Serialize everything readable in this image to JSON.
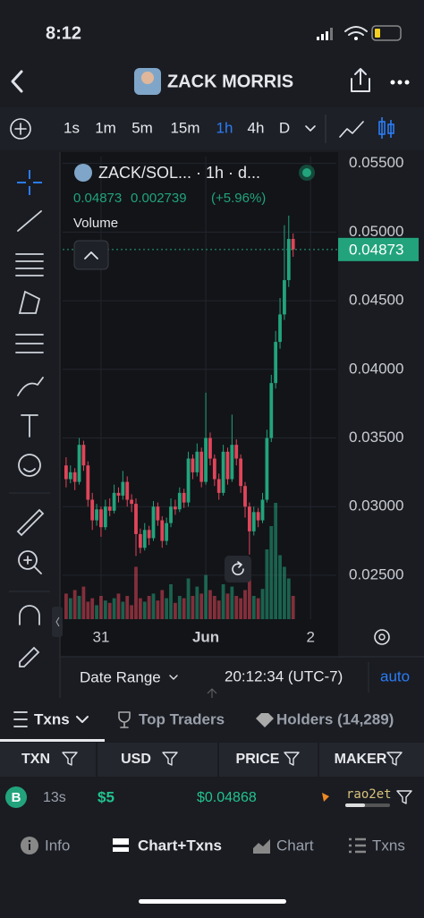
{
  "status": {
    "time": "8:12"
  },
  "header": {
    "title": "ZACK MORRIS"
  },
  "toolbar": {
    "intervals": [
      "1s",
      "1m",
      "5m",
      "15m",
      "1h",
      "4h",
      "D"
    ]
  },
  "chart": {
    "type": "candlestick",
    "symbol": "ZACK/SOL... · 1h · d...",
    "last_text": "0.04873",
    "change_text": "0.002739",
    "change_pct": "(+5.96%)",
    "volume_label": "Volume",
    "up_color": "#22a37c",
    "down_color": "#e0455a",
    "open": [
      0.033,
      0.032,
      0.0325,
      0.0318,
      0.0345,
      0.033,
      0.0305,
      0.029,
      0.0298,
      0.0285,
      0.03,
      0.0297,
      0.031,
      0.0308,
      0.0318,
      0.0305,
      0.0302,
      0.028,
      0.027,
      0.0283,
      0.0277,
      0.03,
      0.029,
      0.0275,
      0.0288,
      0.03,
      0.0298,
      0.031,
      0.0303,
      0.0335,
      0.0325,
      0.034,
      0.0318,
      0.035,
      0.0335,
      0.032,
      0.031,
      0.034,
      0.032,
      0.0345,
      0.0335,
      0.0315,
      0.03,
      0.0282,
      0.0296,
      0.029,
      0.0305,
      0.035,
      0.039,
      0.042,
      0.044,
      0.0465,
      0.0495
    ],
    "high": [
      0.0336,
      0.033,
      0.0328,
      0.035,
      0.0348,
      0.0333,
      0.031,
      0.0302,
      0.03,
      0.0305,
      0.0306,
      0.0316,
      0.0314,
      0.0326,
      0.0322,
      0.0309,
      0.0306,
      0.0284,
      0.0288,
      0.0286,
      0.0304,
      0.0303,
      0.0293,
      0.0292,
      0.0306,
      0.0305,
      0.0314,
      0.0313,
      0.034,
      0.0338,
      0.0346,
      0.0343,
      0.0383,
      0.0354,
      0.0338,
      0.0324,
      0.0345,
      0.0343,
      0.0367,
      0.0349,
      0.0338,
      0.0318,
      0.0303,
      0.03,
      0.0299,
      0.031,
      0.0356,
      0.0396,
      0.0428,
      0.0452,
      0.0505,
      0.0512,
      0.0499
    ],
    "low": [
      0.0314,
      0.0317,
      0.0312,
      0.0316,
      0.0326,
      0.03,
      0.0283,
      0.0286,
      0.0278,
      0.0283,
      0.0293,
      0.0295,
      0.0303,
      0.0305,
      0.03,
      0.0296,
      0.0264,
      0.0266,
      0.0268,
      0.0272,
      0.0275,
      0.0286,
      0.027,
      0.0272,
      0.0285,
      0.0294,
      0.0296,
      0.0299,
      0.03,
      0.032,
      0.0322,
      0.0314,
      0.0316,
      0.033,
      0.0315,
      0.0305,
      0.0308,
      0.0316,
      0.0318,
      0.033,
      0.031,
      0.0292,
      0.0265,
      0.0279,
      0.0285,
      0.0288,
      0.0303,
      0.0347,
      0.0386,
      0.0415,
      0.0436,
      0.046,
      0.0482
    ],
    "close": [
      0.032,
      0.0325,
      0.0318,
      0.0345,
      0.033,
      0.0305,
      0.029,
      0.0298,
      0.0285,
      0.03,
      0.0297,
      0.031,
      0.0308,
      0.0318,
      0.0305,
      0.0302,
      0.028,
      0.027,
      0.0283,
      0.0277,
      0.03,
      0.029,
      0.0275,
      0.0288,
      0.03,
      0.0298,
      0.031,
      0.0303,
      0.0335,
      0.0325,
      0.034,
      0.0318,
      0.035,
      0.0335,
      0.032,
      0.031,
      0.034,
      0.032,
      0.0345,
      0.0335,
      0.0315,
      0.03,
      0.0282,
      0.0296,
      0.029,
      0.0305,
      0.035,
      0.039,
      0.042,
      0.044,
      0.0465,
      0.0495,
      0.04873
    ],
    "volume": [
      22,
      18,
      25,
      20,
      28,
      15,
      18,
      12,
      20,
      16,
      14,
      18,
      22,
      15,
      20,
      12,
      45,
      18,
      15,
      20,
      22,
      16,
      25,
      18,
      30,
      14,
      20,
      18,
      35,
      20,
      28,
      22,
      38,
      25,
      20,
      16,
      30,
      22,
      28,
      20,
      18,
      25,
      34,
      20,
      18,
      26,
      60,
      80,
      100,
      55,
      45,
      35,
      20
    ],
    "xlim": [
      -0.8,
      61.9
    ],
    "xticks": [
      {
        "value": 8,
        "label": "31"
      },
      {
        "value": 32,
        "label": "Jun"
      },
      {
        "value": 56,
        "label": "2"
      }
    ],
    "ylim": [
      0.0218,
      0.0555
    ],
    "yticks": [
      {
        "value": 0.025,
        "label": "0.02500"
      },
      {
        "value": 0.03,
        "label": "0.03000"
      },
      {
        "value": 0.035,
        "label": "0.03500"
      },
      {
        "value": 0.04,
        "label": "0.04000"
      },
      {
        "value": 0.045,
        "label": "0.04500"
      },
      {
        "value": 0.05,
        "label": "0.05000"
      },
      {
        "value": 0.055,
        "label": "0.05500"
      }
    ],
    "last_price": {
      "value": 0.04873,
      "label": "0.04873"
    },
    "grid": true
  },
  "chart_footer": {
    "date_range": "Date Range",
    "time": "20:12:34 (UTC-7)",
    "auto": "auto"
  },
  "tabs": [
    "Txns",
    "Top Traders",
    "Holders (14,289)"
  ],
  "table": {
    "headers": [
      "TXN",
      "USD",
      "PRICE",
      "MAKER"
    ],
    "rows": [
      [
        "B",
        "13s",
        "$5",
        "$0.04868",
        "rao2et"
      ]
    ]
  },
  "nav": [
    "Info",
    "Chart+Txns",
    "Chart",
    "Txns"
  ]
}
